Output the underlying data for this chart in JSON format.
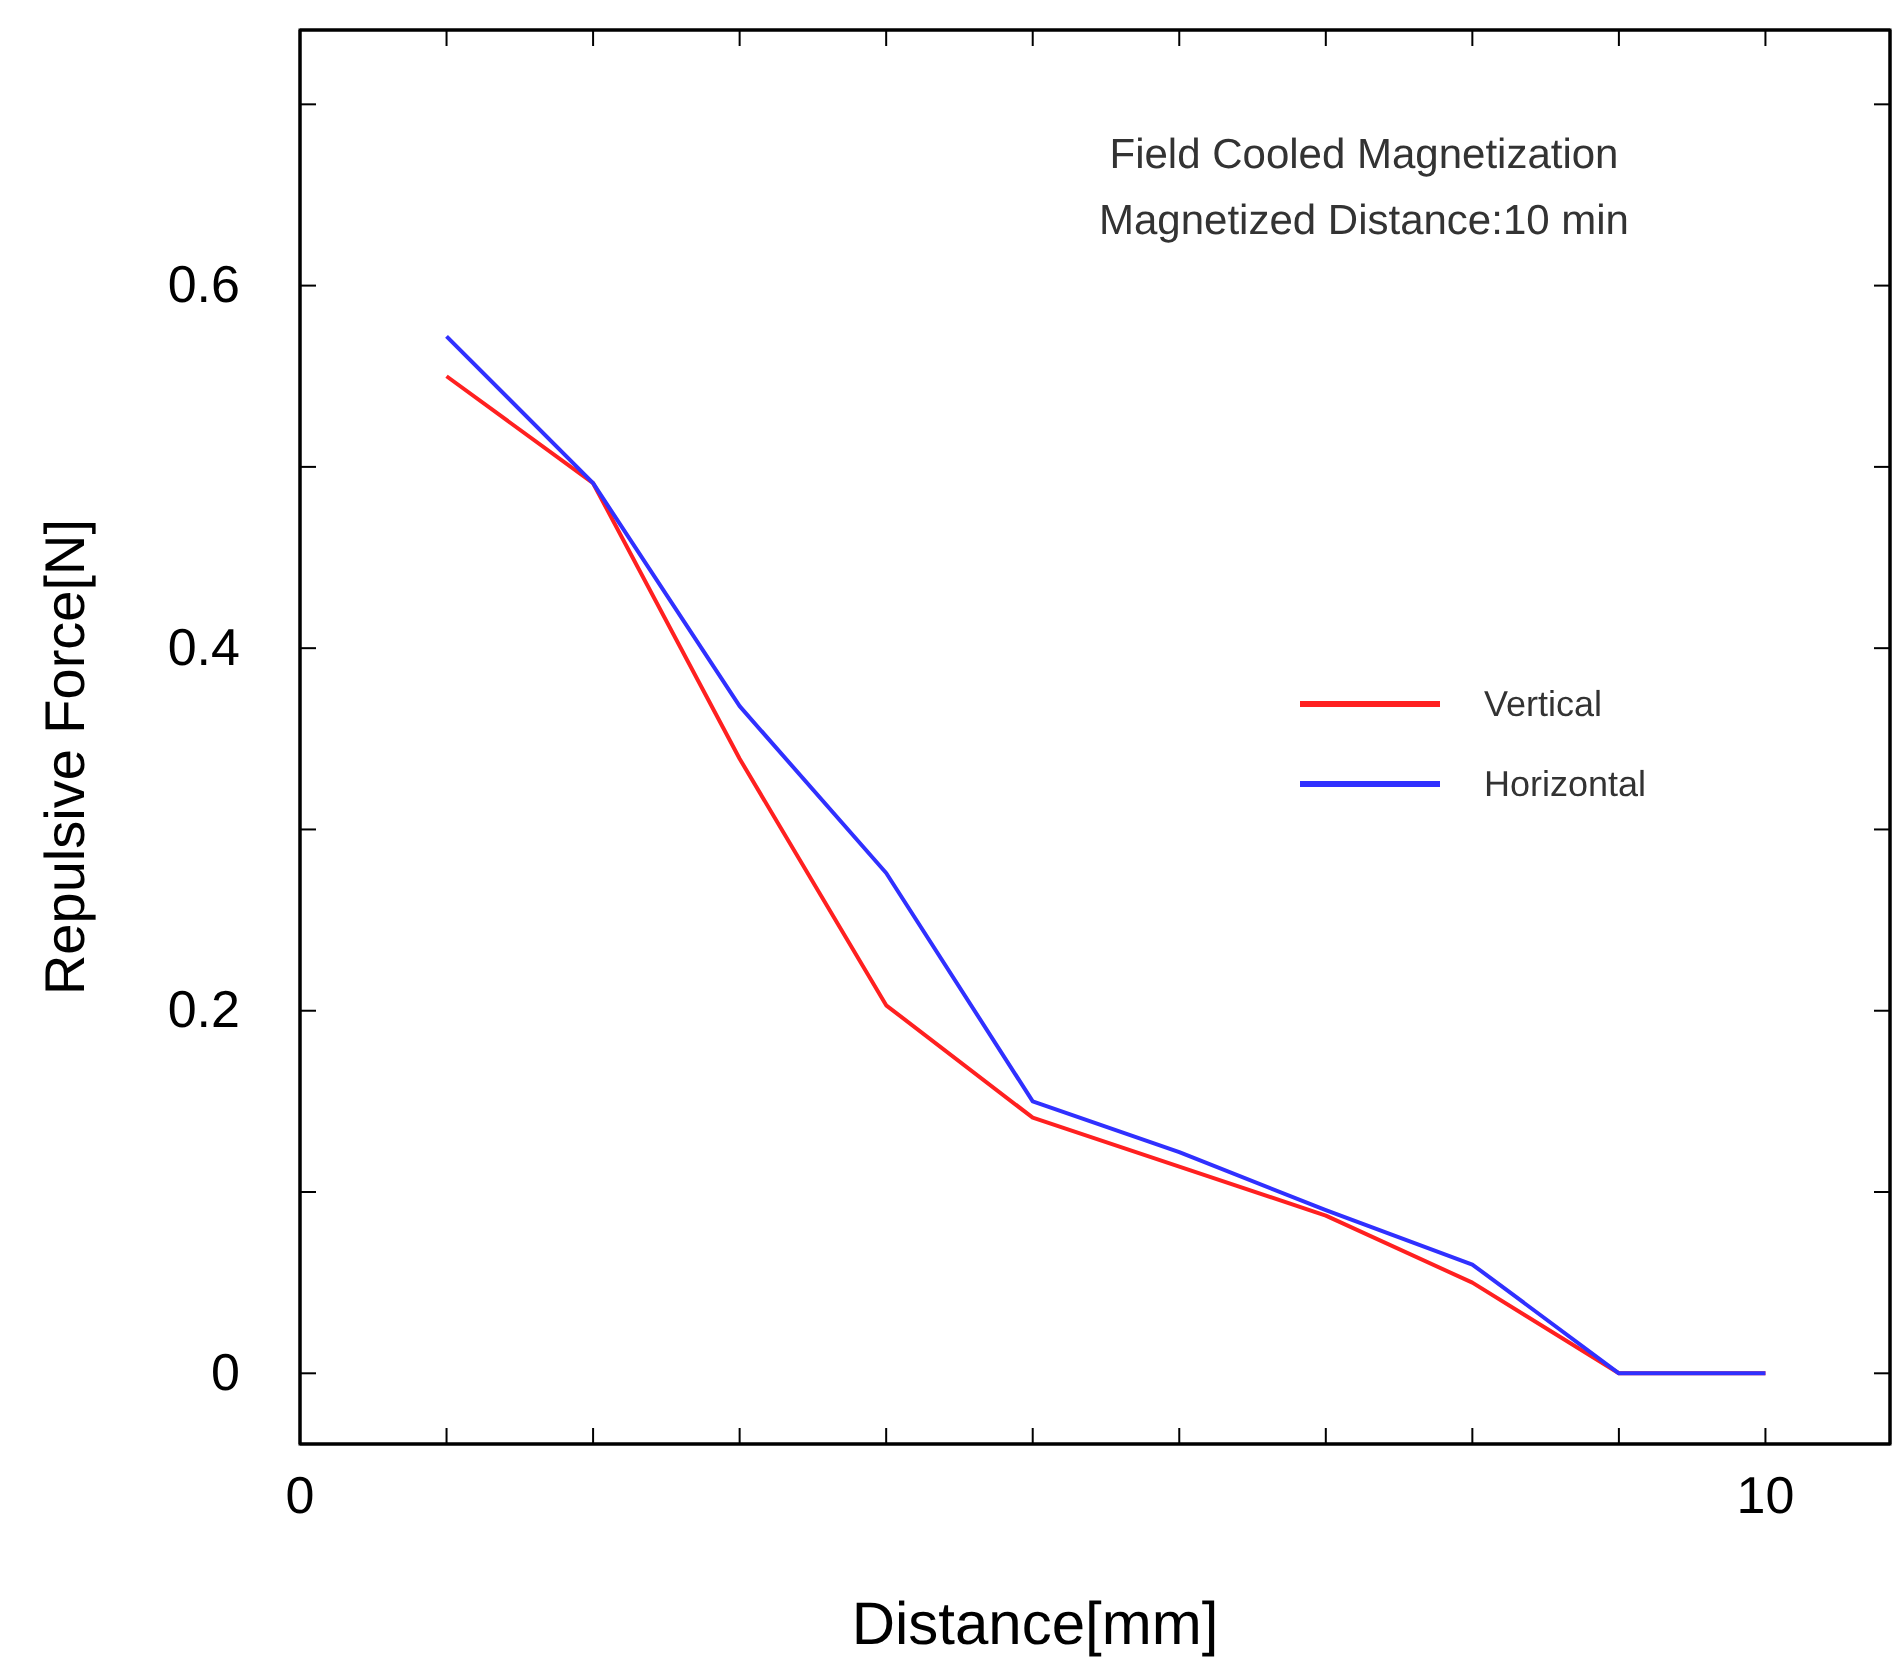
{
  "chart_data": {
    "type": "line",
    "xlabel": "Distance[mm]",
    "ylabel": "Repulsive Force[N]",
    "x": [
      1,
      2,
      3,
      4,
      5,
      6,
      7,
      8,
      9,
      10
    ],
    "series": [
      {
        "name": "Vertical",
        "color": "#ff2020",
        "values": [
          0.55,
          0.491,
          0.339,
          0.203,
          0.141,
          0.114,
          0.087,
          0.05,
          0,
          0
        ]
      },
      {
        "name": "Horizontal",
        "color": "#3030ff",
        "values": [
          0.572,
          0.491,
          0.368,
          0.276,
          0.15,
          0.122,
          0.09,
          0.06,
          0,
          0
        ]
      }
    ],
    "xlim": [
      0,
      10.85
    ],
    "xticks": [
      0,
      {
        "value": 1,
        "label": null
      },
      {
        "value": 2,
        "label": null
      },
      {
        "value": 3,
        "label": null
      },
      {
        "value": 4,
        "label": null
      },
      {
        "value": 5,
        "label": null
      },
      {
        "value": 6,
        "label": null
      },
      {
        "value": 7,
        "label": null
      },
      {
        "value": 8,
        "label": null
      },
      {
        "value": 9,
        "label": null
      },
      10
    ],
    "ylim": [
      -0.039,
      0.741
    ],
    "yticks": [
      0,
      {
        "value": 0.1,
        "label": null
      },
      0.2,
      {
        "value": 0.3,
        "label": null
      },
      0.4,
      {
        "value": 0.5,
        "label": null
      },
      0.6,
      {
        "value": 0.7,
        "label": null
      }
    ],
    "annotations": [
      "Field Cooled Magnetization",
      "Magnetized Distance:10 min"
    ],
    "legend": "right",
    "grid": false,
    "marker": "none",
    "line_style": "solid"
  }
}
